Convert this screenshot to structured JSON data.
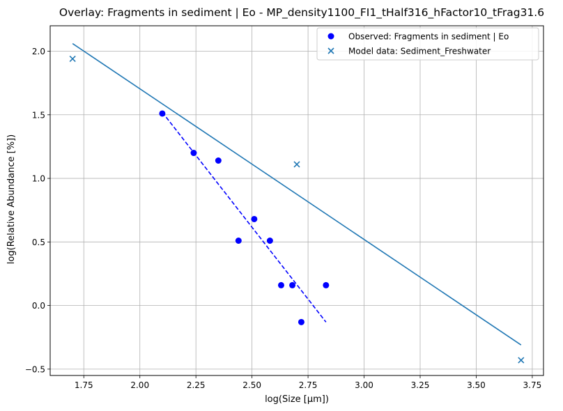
{
  "chart_data": {
    "type": "scatter",
    "title": "Overlay: Fragments in sediment | Eo - MP_density1100_FI1_tHalf316_hFactor10_tFrag31.6",
    "xlabel": "log(Size [µm])",
    "ylabel": "log(Relative Abundance [%])",
    "xlim": [
      1.6,
      3.8
    ],
    "ylim": [
      -0.55,
      2.2
    ],
    "grid": true,
    "legend_position": "top-right",
    "x_ticks": [
      1.75,
      2.0,
      2.25,
      2.5,
      2.75,
      3.0,
      3.25,
      3.5,
      3.75
    ],
    "x_tick_labels": [
      "1.75",
      "2.00",
      "2.25",
      "2.50",
      "2.75",
      "3.00",
      "3.25",
      "3.50",
      "3.75"
    ],
    "y_ticks": [
      -0.5,
      0.0,
      0.5,
      1.0,
      1.5,
      2.0
    ],
    "y_tick_labels": [
      "−0.5",
      "0.0",
      "0.5",
      "1.0",
      "1.5",
      "2.0"
    ],
    "series": [
      {
        "name": "Observed: Fragments in sediment | Eo",
        "kind": "scatter",
        "marker": "circle",
        "color": "#0000ff",
        "x": [
          2.1,
          2.24,
          2.35,
          2.44,
          2.51,
          2.58,
          2.63,
          2.68,
          2.72,
          2.83
        ],
        "y": [
          1.51,
          1.2,
          1.14,
          0.51,
          0.68,
          0.51,
          0.16,
          0.16,
          -0.13,
          0.16
        ]
      },
      {
        "name": "Model data: Sediment_Freshwater",
        "kind": "scatter",
        "marker": "x",
        "color": "#1f77b4",
        "x": [
          1.7,
          2.7,
          3.7
        ],
        "y": [
          1.94,
          1.11,
          -0.43
        ]
      }
    ],
    "fit_lines": [
      {
        "name": "observed-fit",
        "color": "#0000ff",
        "style": "dashed",
        "x": [
          2.1,
          2.83
        ],
        "y": [
          1.52,
          -0.13
        ]
      },
      {
        "name": "model-fit",
        "color": "#1f77b4",
        "style": "solid",
        "x": [
          1.7,
          3.7
        ],
        "y": [
          2.06,
          -0.31
        ]
      }
    ]
  }
}
